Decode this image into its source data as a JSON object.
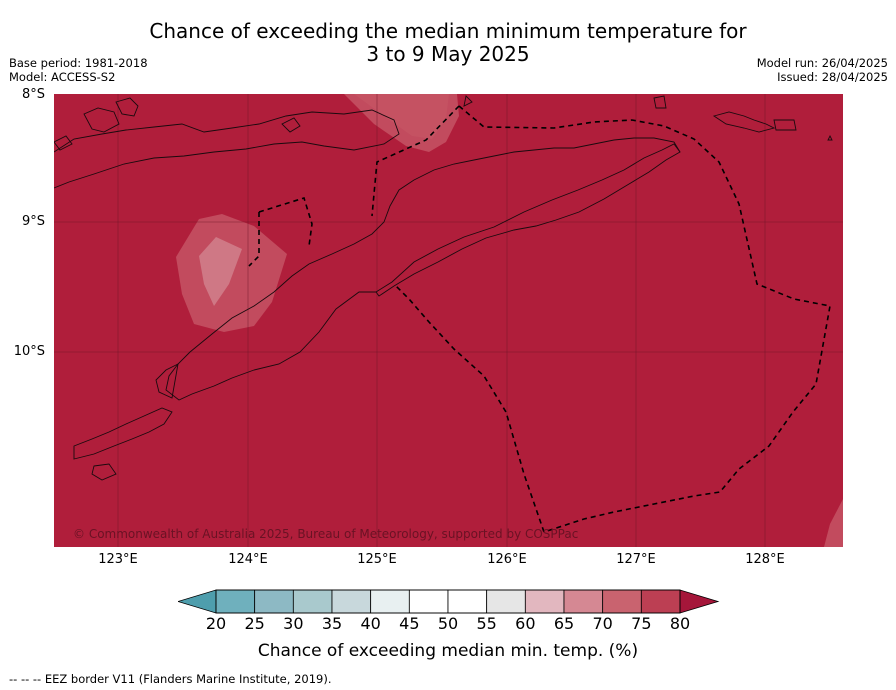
{
  "header": {
    "title_line1": "Chance of exceeding the median minimum temperature for",
    "title_line2": "3 to 9 May 2025",
    "base_period": "Base period: 1981-2018",
    "model": "Model: ACCESS-S2",
    "model_run": "Model run: 26/04/2025",
    "issued": "Issued: 28/04/2025"
  },
  "map": {
    "lat_labels": [
      "8°S",
      "9°S",
      "10°S"
    ],
    "lon_labels": [
      "123°E",
      "124°E",
      "125°E",
      "126°E",
      "127°E",
      "128°E"
    ],
    "copyright": "© Commonwealth of Australia 2025, Bureau of Meteorology, supported by COSPPac",
    "dominant_fill_color": "#b01e3b",
    "lighter_patch_color": "#c24b5e",
    "lightest_patch_color": "#cf7885",
    "eez_border_style": "dashed"
  },
  "colorbar": {
    "label": "Chance of exceeding median min. temp. (%)",
    "ticks": [
      "20",
      "25",
      "30",
      "35",
      "40",
      "45",
      "50",
      "55",
      "60",
      "65",
      "70",
      "75",
      "80"
    ],
    "under_color": "#4e9ead",
    "over_color": "#a5163a",
    "colors": [
      "#6fb0bd",
      "#8db9c4",
      "#a9c9cd",
      "#c8d8dc",
      "#e8f0f1",
      "#ffffff",
      "#ffffff",
      "#e6e6e6",
      "#e2b7bf",
      "#d58893",
      "#c9636f",
      "#bc3f53"
    ]
  },
  "footer": {
    "text": "--  --  -- EEZ border V11 (Flanders Marine Institute, 2019)."
  }
}
